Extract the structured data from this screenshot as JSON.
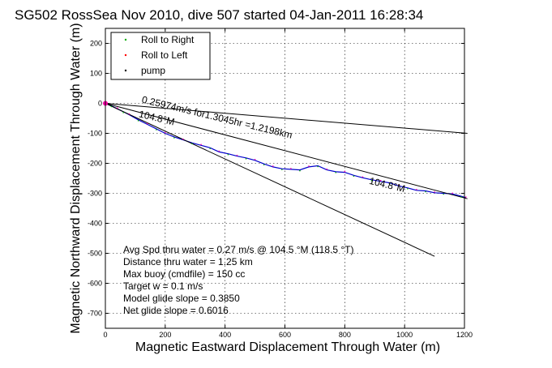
{
  "chart_data": {
    "type": "line",
    "title": "SG502 RossSea Nov 2010, dive 507 started 04-Jan-2011 16:28:34",
    "xlabel": "Magnetic Eastward Displacement Through Water (m)",
    "ylabel": "Magnetic Northward Displacement Through Water (m)",
    "xlim": [
      0,
      1200
    ],
    "ylim": [
      -750,
      250
    ],
    "xticks": [
      0,
      200,
      400,
      600,
      800,
      1000,
      1200
    ],
    "yticks": [
      200,
      100,
      0,
      -100,
      -200,
      -300,
      -400,
      -500,
      -600,
      -700
    ],
    "grid": true,
    "legend_position": "top-left",
    "legend": [
      {
        "label": "Roll to Right",
        "color": "#00aa00",
        "marker": "dot"
      },
      {
        "label": "Roll to Left",
        "color": "#ff0000",
        "marker": "dot"
      },
      {
        "label": "pump",
        "color": "#000000",
        "marker": "dot"
      }
    ],
    "series": [
      {
        "color": "#0000cc",
        "x": [
          0,
          20,
          40,
          60,
          80,
          110,
          140,
          170,
          200,
          230,
          260,
          290,
          320,
          350,
          380,
          410,
          440,
          470,
          500,
          530,
          560,
          590,
          620,
          650,
          680,
          710,
          740,
          770,
          800,
          830,
          860,
          890,
          920,
          950,
          980,
          1010,
          1040,
          1070,
          1100,
          1130,
          1160,
          1190,
          1205
        ],
        "y": [
          0,
          -8,
          -18,
          -28,
          -38,
          -55,
          -70,
          -85,
          -100,
          -112,
          -122,
          -132,
          -140,
          -148,
          -162,
          -168,
          -176,
          -182,
          -190,
          -202,
          -212,
          -218,
          -220,
          -222,
          -212,
          -208,
          -222,
          -228,
          -230,
          -240,
          -248,
          -255,
          -260,
          -265,
          -275,
          -282,
          -290,
          -292,
          -298,
          -300,
          -302,
          -310,
          -315
        ]
      },
      {
        "color": "#000000",
        "x": [
          0,
          1210
        ],
        "y": [
          0,
          -100
        ]
      },
      {
        "color": "#000000",
        "x": [
          0,
          1100
        ],
        "y": [
          0,
          -510
        ]
      },
      {
        "color": "#000000",
        "x": [
          0,
          1210
        ],
        "y": [
          0,
          -318
        ]
      }
    ],
    "annotations": [
      {
        "text": "0.25974m/s for1.3045hr =1.2198km",
        "x": 120,
        "y": 3,
        "angle": 13.5
      },
      {
        "text": "104.8°M",
        "x": 110,
        "y": -45,
        "angle": 13.5
      },
      {
        "text": "104.8°M",
        "x": 880,
        "y": -268,
        "angle": 13.5
      }
    ],
    "stats": [
      "Avg Spd thru water =  0.27 m/s @ 104.5   °M (118.5 °T)",
      "Distance thru water =  1.25 km",
      "Max buoy (cmdfile) = 150 cc",
      "Target w = 0.1 m/s",
      "Model glide slope = 0.3850",
      "Net glide slope = 0.6016"
    ]
  }
}
